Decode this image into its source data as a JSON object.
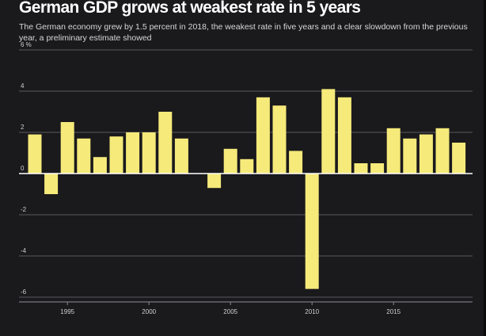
{
  "chart_data": {
    "type": "bar",
    "title": "German GDP grows at weakest rate in 5 years",
    "subtitle": "The German economy grew by 1.5 percent in 2018, the weakest rate in five years and a clear slowdown from the previous year, a preliminary estimate showed",
    "xlabel": "",
    "ylabel": "",
    "y_unit": "%",
    "categories": [
      1992,
      1993,
      1994,
      1995,
      1996,
      1997,
      1998,
      1999,
      2000,
      2001,
      2002,
      2003,
      2004,
      2005,
      2006,
      2007,
      2008,
      2009,
      2010,
      2011,
      2012,
      2013,
      2014,
      2015,
      2016,
      2017,
      2018
    ],
    "values": [
      1.9,
      -1.0,
      2.5,
      1.7,
      0.8,
      1.8,
      2.0,
      2.0,
      3.0,
      1.7,
      0.0,
      -0.7,
      1.2,
      0.7,
      3.7,
      3.3,
      1.1,
      -5.6,
      4.1,
      3.7,
      0.5,
      0.5,
      2.2,
      1.7,
      1.9,
      2.2,
      1.5
    ],
    "ylim": [
      -6,
      6
    ],
    "y_ticks": [
      6,
      4,
      2,
      0,
      -2,
      -4,
      -6
    ],
    "y_tick_labels": [
      "6 %",
      "4",
      "2",
      "0",
      "-2",
      "-4",
      "-6"
    ],
    "x_ticks": [
      1995,
      2000,
      2005,
      2010,
      2015
    ],
    "x_tick_labels": [
      "1995",
      "2000",
      "2005",
      "2010",
      "2015"
    ],
    "grid": true,
    "colors": {
      "bar": "#f5ea7a",
      "background": "#1a191c",
      "grid": "#5a595c",
      "zero_line": "#ffffff"
    }
  }
}
